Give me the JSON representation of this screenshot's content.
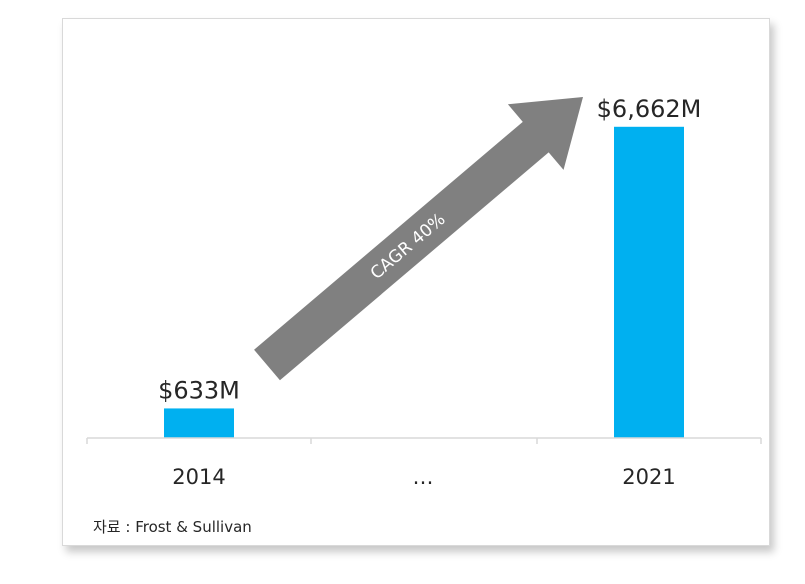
{
  "chart_data": {
    "type": "bar",
    "categories": [
      "2014",
      "…",
      "2021"
    ],
    "values": [
      633,
      null,
      6662
    ],
    "data_labels": [
      "$633M",
      "",
      "$6,662M"
    ],
    "ylim": [
      0,
      7000
    ],
    "grid": false,
    "legend": "none",
    "bar_color": "#00b0f0",
    "annotation": {
      "text": "CAGR 40%",
      "type": "arrow",
      "color": "#808080"
    }
  },
  "source_note": "자료 : Frost & Sullivan"
}
